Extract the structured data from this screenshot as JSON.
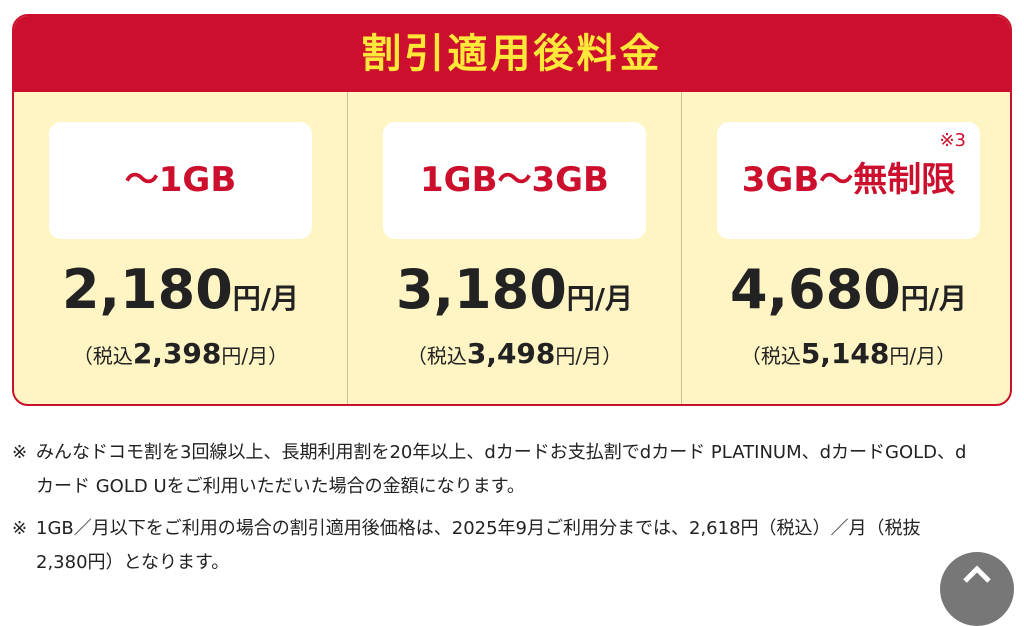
{
  "header": {
    "title": "割引適用後料金"
  },
  "plans": [
    {
      "label": "～1GB",
      "price": "2,180",
      "unit": "円/月",
      "tax_prefix": "（税込",
      "tax_price": "2,398",
      "tax_suffix": "円/月）"
    },
    {
      "label": "1GB～3GB",
      "price": "3,180",
      "unit": "円/月",
      "tax_prefix": "（税込",
      "tax_price": "3,498",
      "tax_suffix": "円/月）"
    },
    {
      "label": "3GB～無制限",
      "note": "※3",
      "price": "4,680",
      "unit": "円/月",
      "tax_prefix": "（税込",
      "tax_price": "5,148",
      "tax_suffix": "円/月）"
    }
  ],
  "notes": [
    {
      "marker": "※",
      "text": "みんなドコモ割を3回線以上、長期利用割を20年以上、dカードお支払割でdカード PLATINUM、dカードGOLD、dカード GOLD Uをご利用いただいた場合の金額になります。"
    },
    {
      "marker": "※",
      "text": "1GB／月以下をご利用の場合の割引適用後価格は、2025年9月ご利用分までは、2,618円（税込）／月（税抜2,380円）となります。"
    }
  ]
}
